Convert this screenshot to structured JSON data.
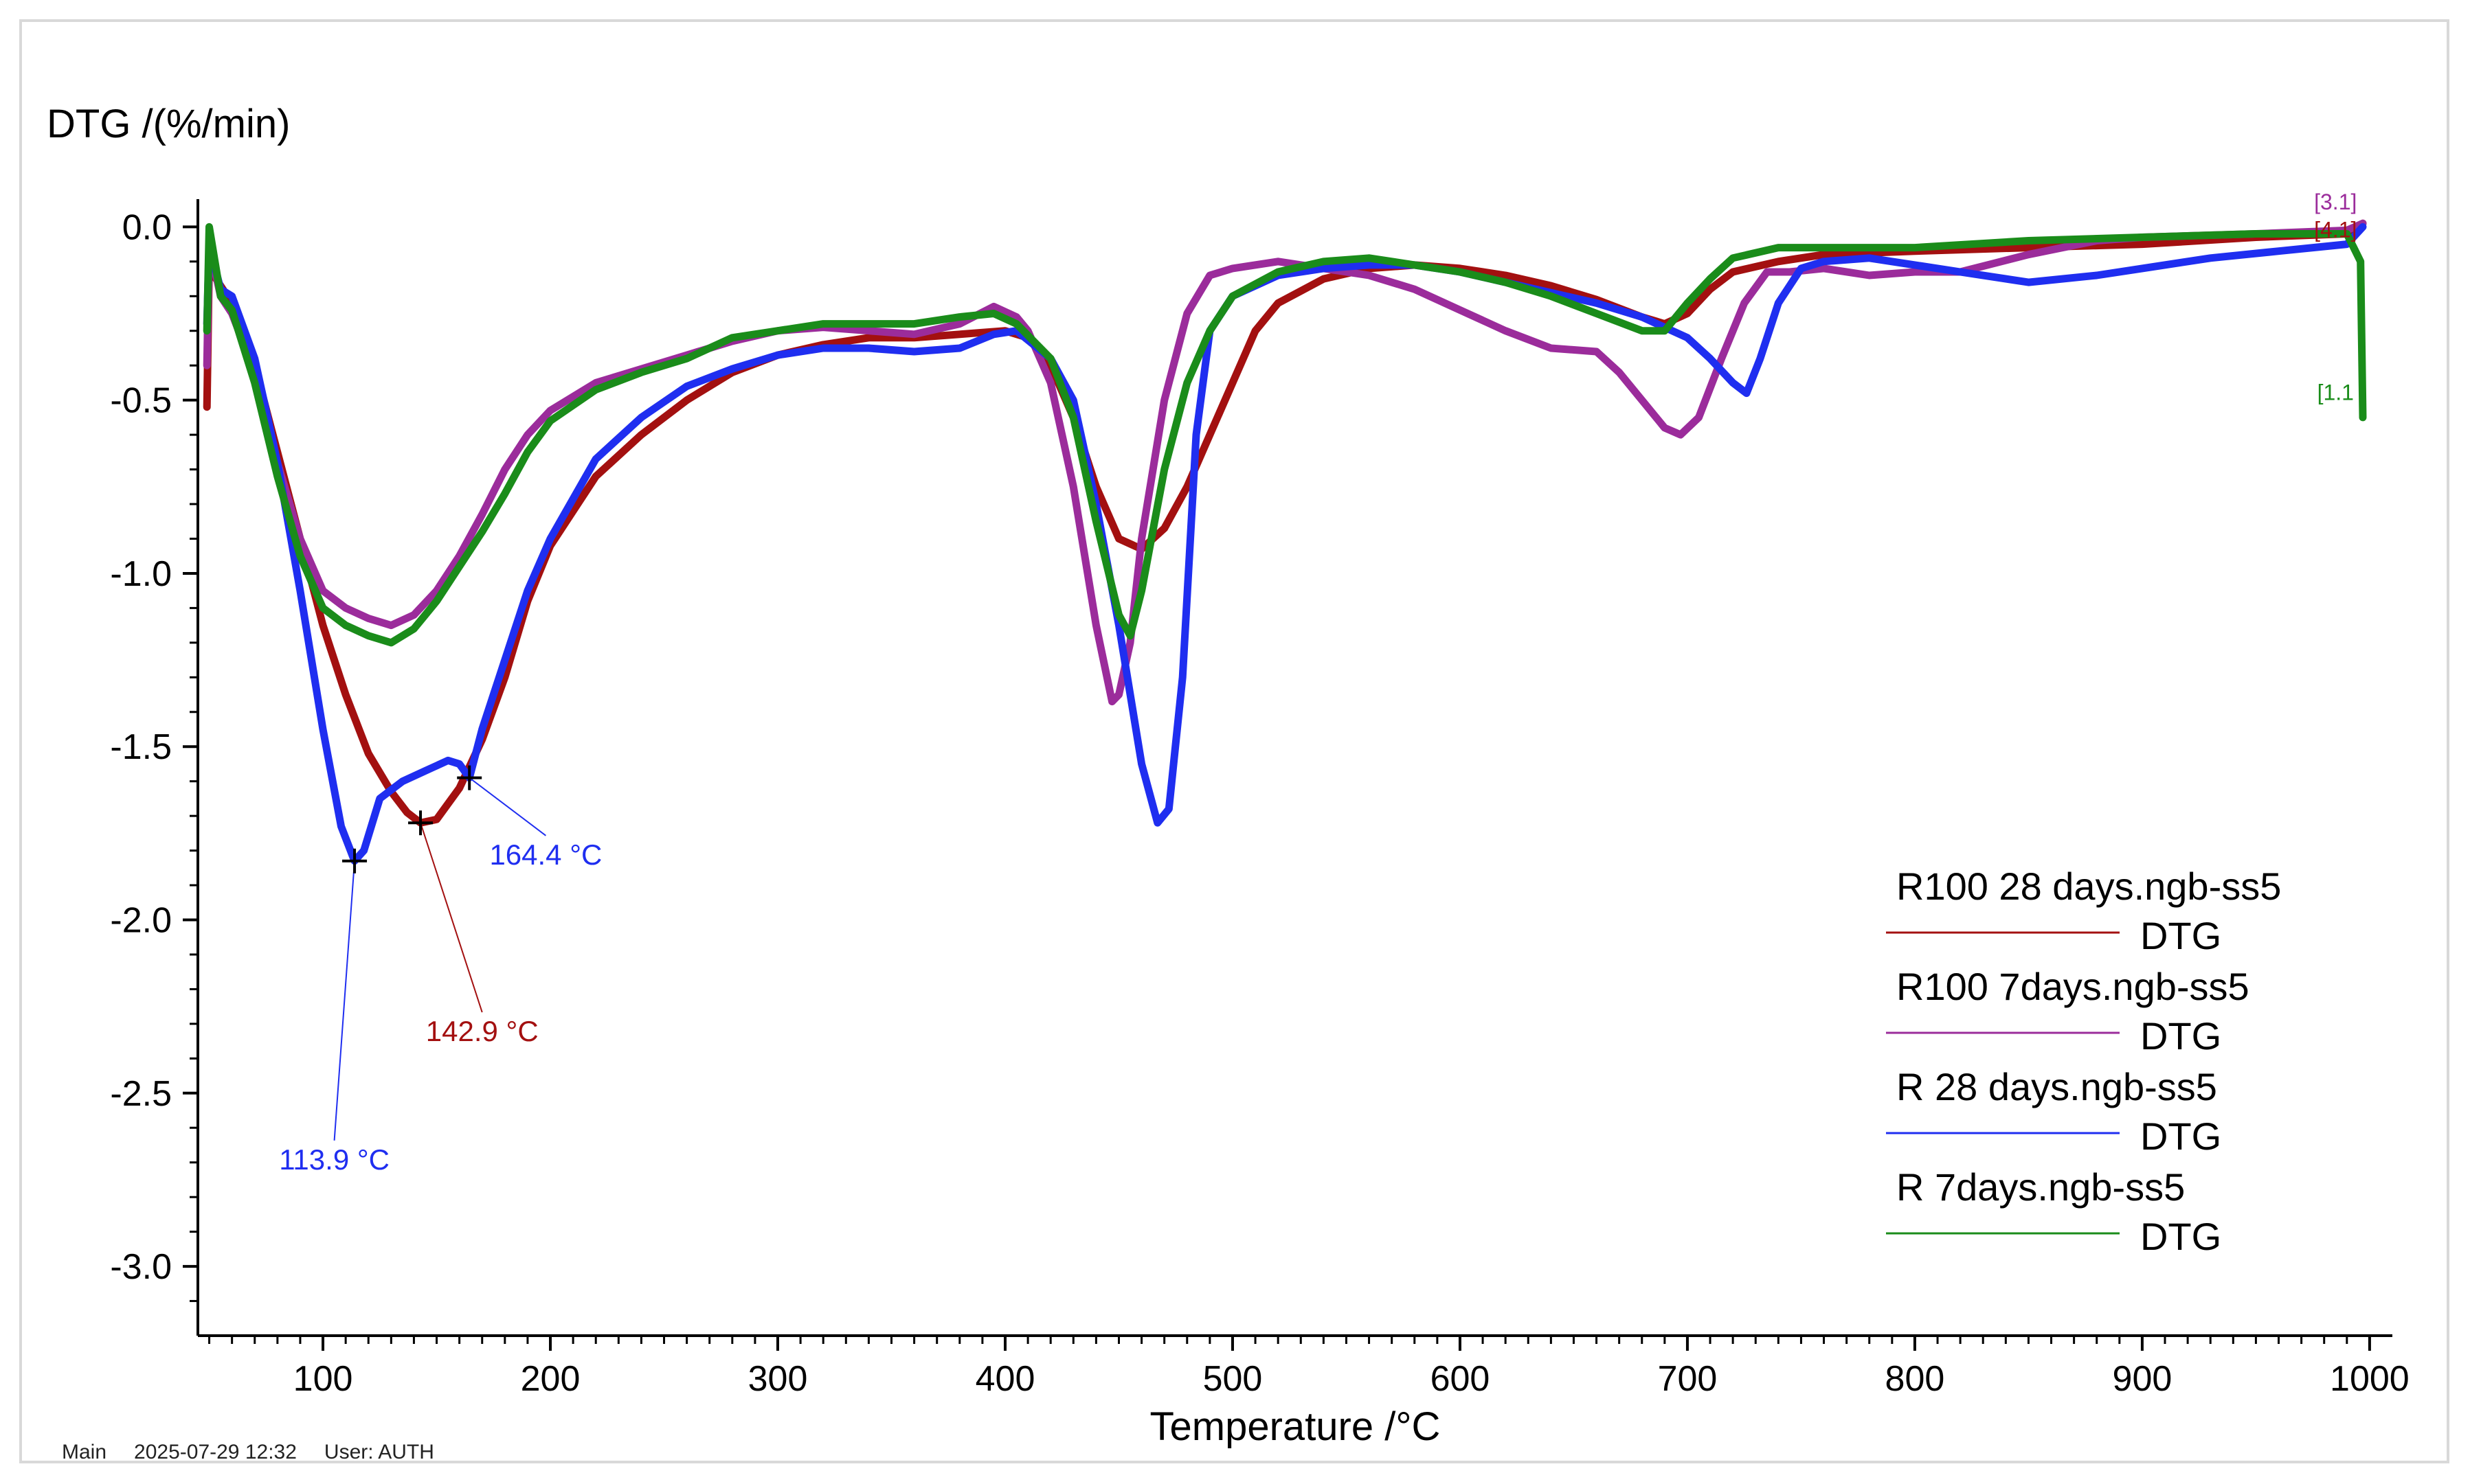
{
  "chart_data": {
    "type": "line",
    "ylabel": "DTG /(%/min)",
    "xlabel": "Temperature /°C",
    "xlim": [
      45,
      1010
    ],
    "ylim": [
      -3.2,
      0.08
    ],
    "xticks": [
      100,
      200,
      300,
      400,
      500,
      600,
      700,
      800,
      900,
      1000
    ],
    "yticks": [
      0.0,
      -0.5,
      -1.0,
      -1.5,
      -2.0,
      -2.5,
      -3.0
    ],
    "ytick_labels": [
      "0.0",
      "-0.5",
      "-1.0",
      "-1.5",
      "-2.0",
      "-2.5",
      "-3.0"
    ],
    "legend_position": "bottom-right",
    "series": [
      {
        "name": "R100 28 days.ngb-ss5",
        "sub": "DTG",
        "color": "#a31010",
        "points": [
          [
            49,
            -0.52
          ],
          [
            50,
            -0.1
          ],
          [
            53,
            -0.15
          ],
          [
            60,
            -0.22
          ],
          [
            70,
            -0.4
          ],
          [
            80,
            -0.65
          ],
          [
            90,
            -0.9
          ],
          [
            100,
            -1.15
          ],
          [
            110,
            -1.35
          ],
          [
            120,
            -1.52
          ],
          [
            130,
            -1.63
          ],
          [
            137,
            -1.69
          ],
          [
            142.9,
            -1.72
          ],
          [
            150,
            -1.71
          ],
          [
            160,
            -1.62
          ],
          [
            170,
            -1.48
          ],
          [
            180,
            -1.3
          ],
          [
            190,
            -1.08
          ],
          [
            200,
            -0.92
          ],
          [
            220,
            -0.72
          ],
          [
            240,
            -0.6
          ],
          [
            260,
            -0.5
          ],
          [
            280,
            -0.42
          ],
          [
            300,
            -0.37
          ],
          [
            320,
            -0.34
          ],
          [
            340,
            -0.32
          ],
          [
            360,
            -0.32
          ],
          [
            380,
            -0.31
          ],
          [
            400,
            -0.3
          ],
          [
            410,
            -0.32
          ],
          [
            420,
            -0.4
          ],
          [
            430,
            -0.55
          ],
          [
            440,
            -0.75
          ],
          [
            450,
            -0.9
          ],
          [
            460,
            -0.93
          ],
          [
            470,
            -0.87
          ],
          [
            480,
            -0.75
          ],
          [
            490,
            -0.6
          ],
          [
            500,
            -0.45
          ],
          [
            510,
            -0.3
          ],
          [
            520,
            -0.22
          ],
          [
            540,
            -0.15
          ],
          [
            560,
            -0.12
          ],
          [
            580,
            -0.11
          ],
          [
            600,
            -0.12
          ],
          [
            620,
            -0.14
          ],
          [
            640,
            -0.17
          ],
          [
            660,
            -0.21
          ],
          [
            680,
            -0.26
          ],
          [
            690,
            -0.28
          ],
          [
            700,
            -0.25
          ],
          [
            710,
            -0.18
          ],
          [
            720,
            -0.13
          ],
          [
            740,
            -0.1
          ],
          [
            760,
            -0.08
          ],
          [
            800,
            -0.07
          ],
          [
            850,
            -0.06
          ],
          [
            900,
            -0.05
          ],
          [
            950,
            -0.03
          ],
          [
            990,
            -0.02
          ],
          [
            997,
            0.01
          ]
        ]
      },
      {
        "name": "R100 7days.ngb-ss5",
        "sub": "DTG",
        "color": "#9b2c9b",
        "points": [
          [
            49,
            -0.4
          ],
          [
            50,
            -0.05
          ],
          [
            55,
            -0.2
          ],
          [
            60,
            -0.25
          ],
          [
            70,
            -0.42
          ],
          [
            80,
            -0.68
          ],
          [
            90,
            -0.9
          ],
          [
            100,
            -1.05
          ],
          [
            110,
            -1.1
          ],
          [
            120,
            -1.13
          ],
          [
            130,
            -1.15
          ],
          [
            140,
            -1.12
          ],
          [
            150,
            -1.05
          ],
          [
            160,
            -0.95
          ],
          [
            170,
            -0.83
          ],
          [
            180,
            -0.7
          ],
          [
            190,
            -0.6
          ],
          [
            200,
            -0.53
          ],
          [
            220,
            -0.45
          ],
          [
            240,
            -0.41
          ],
          [
            260,
            -0.37
          ],
          [
            280,
            -0.33
          ],
          [
            300,
            -0.3
          ],
          [
            320,
            -0.29
          ],
          [
            340,
            -0.3
          ],
          [
            360,
            -0.31
          ],
          [
            380,
            -0.28
          ],
          [
            395,
            -0.23
          ],
          [
            405,
            -0.26
          ],
          [
            410,
            -0.3
          ],
          [
            420,
            -0.45
          ],
          [
            430,
            -0.75
          ],
          [
            440,
            -1.15
          ],
          [
            447,
            -1.37
          ],
          [
            450,
            -1.35
          ],
          [
            455,
            -1.2
          ],
          [
            460,
            -0.9
          ],
          [
            470,
            -0.5
          ],
          [
            480,
            -0.25
          ],
          [
            490,
            -0.14
          ],
          [
            500,
            -0.12
          ],
          [
            520,
            -0.1
          ],
          [
            540,
            -0.12
          ],
          [
            560,
            -0.14
          ],
          [
            580,
            -0.18
          ],
          [
            600,
            -0.24
          ],
          [
            620,
            -0.3
          ],
          [
            640,
            -0.35
          ],
          [
            660,
            -0.36
          ],
          [
            670,
            -0.42
          ],
          [
            680,
            -0.5
          ],
          [
            690,
            -0.58
          ],
          [
            697,
            -0.6
          ],
          [
            705,
            -0.55
          ],
          [
            715,
            -0.38
          ],
          [
            725,
            -0.22
          ],
          [
            735,
            -0.13
          ],
          [
            745,
            -0.13
          ],
          [
            760,
            -0.12
          ],
          [
            780,
            -0.14
          ],
          [
            800,
            -0.13
          ],
          [
            820,
            -0.13
          ],
          [
            850,
            -0.08
          ],
          [
            880,
            -0.04
          ],
          [
            900,
            -0.03
          ],
          [
            950,
            -0.02
          ],
          [
            990,
            -0.01
          ],
          [
            997,
            0.01
          ]
        ]
      },
      {
        "name": "R 28 days.ngb-ss5",
        "sub": "DTG",
        "color": "#1f2ef0",
        "points": [
          [
            49,
            -0.28
          ],
          [
            50,
            -0.05
          ],
          [
            55,
            -0.18
          ],
          [
            60,
            -0.2
          ],
          [
            70,
            -0.38
          ],
          [
            80,
            -0.68
          ],
          [
            90,
            -1.05
          ],
          [
            100,
            -1.45
          ],
          [
            108,
            -1.73
          ],
          [
            113.9,
            -1.83
          ],
          [
            118,
            -1.8
          ],
          [
            125,
            -1.65
          ],
          [
            135,
            -1.6
          ],
          [
            145,
            -1.57
          ],
          [
            155,
            -1.54
          ],
          [
            160,
            -1.55
          ],
          [
            164.4,
            -1.59
          ],
          [
            170,
            -1.45
          ],
          [
            180,
            -1.25
          ],
          [
            190,
            -1.05
          ],
          [
            200,
            -0.9
          ],
          [
            220,
            -0.67
          ],
          [
            240,
            -0.55
          ],
          [
            260,
            -0.46
          ],
          [
            280,
            -0.41
          ],
          [
            300,
            -0.37
          ],
          [
            320,
            -0.35
          ],
          [
            340,
            -0.35
          ],
          [
            360,
            -0.36
          ],
          [
            380,
            -0.35
          ],
          [
            395,
            -0.31
          ],
          [
            405,
            -0.3
          ],
          [
            420,
            -0.38
          ],
          [
            430,
            -0.5
          ],
          [
            440,
            -0.8
          ],
          [
            450,
            -1.15
          ],
          [
            460,
            -1.55
          ],
          [
            467,
            -1.72
          ],
          [
            472,
            -1.68
          ],
          [
            478,
            -1.3
          ],
          [
            484,
            -0.6
          ],
          [
            490,
            -0.3
          ],
          [
            500,
            -0.2
          ],
          [
            520,
            -0.14
          ],
          [
            540,
            -0.12
          ],
          [
            560,
            -0.11
          ],
          [
            580,
            -0.11
          ],
          [
            600,
            -0.13
          ],
          [
            620,
            -0.16
          ],
          [
            640,
            -0.19
          ],
          [
            660,
            -0.22
          ],
          [
            680,
            -0.26
          ],
          [
            700,
            -0.32
          ],
          [
            710,
            -0.38
          ],
          [
            720,
            -0.45
          ],
          [
            726,
            -0.48
          ],
          [
            732,
            -0.38
          ],
          [
            740,
            -0.22
          ],
          [
            750,
            -0.12
          ],
          [
            760,
            -0.1
          ],
          [
            780,
            -0.09
          ],
          [
            800,
            -0.11
          ],
          [
            820,
            -0.13
          ],
          [
            850,
            -0.16
          ],
          [
            880,
            -0.14
          ],
          [
            900,
            -0.12
          ],
          [
            930,
            -0.09
          ],
          [
            960,
            -0.07
          ],
          [
            990,
            -0.05
          ],
          [
            997,
            0.0
          ]
        ]
      },
      {
        "name": "R 7days.ngb-ss5",
        "sub": "DTG",
        "color": "#1a8c1a",
        "points": [
          [
            49,
            -0.3
          ],
          [
            50,
            0.0
          ],
          [
            55,
            -0.2
          ],
          [
            60,
            -0.24
          ],
          [
            70,
            -0.45
          ],
          [
            80,
            -0.72
          ],
          [
            90,
            -0.95
          ],
          [
            100,
            -1.1
          ],
          [
            110,
            -1.15
          ],
          [
            120,
            -1.18
          ],
          [
            130,
            -1.2
          ],
          [
            140,
            -1.16
          ],
          [
            150,
            -1.08
          ],
          [
            160,
            -0.98
          ],
          [
            170,
            -0.88
          ],
          [
            180,
            -0.77
          ],
          [
            190,
            -0.65
          ],
          [
            200,
            -0.56
          ],
          [
            220,
            -0.47
          ],
          [
            240,
            -0.42
          ],
          [
            260,
            -0.38
          ],
          [
            280,
            -0.32
          ],
          [
            300,
            -0.3
          ],
          [
            320,
            -0.28
          ],
          [
            340,
            -0.28
          ],
          [
            360,
            -0.28
          ],
          [
            380,
            -0.26
          ],
          [
            395,
            -0.25
          ],
          [
            405,
            -0.28
          ],
          [
            420,
            -0.38
          ],
          [
            430,
            -0.55
          ],
          [
            440,
            -0.85
          ],
          [
            450,
            -1.12
          ],
          [
            455,
            -1.18
          ],
          [
            460,
            -1.05
          ],
          [
            470,
            -0.7
          ],
          [
            480,
            -0.45
          ],
          [
            490,
            -0.3
          ],
          [
            500,
            -0.2
          ],
          [
            520,
            -0.13
          ],
          [
            540,
            -0.1
          ],
          [
            560,
            -0.09
          ],
          [
            580,
            -0.11
          ],
          [
            600,
            -0.13
          ],
          [
            620,
            -0.16
          ],
          [
            640,
            -0.2
          ],
          [
            660,
            -0.25
          ],
          [
            680,
            -0.3
          ],
          [
            690,
            -0.3
          ],
          [
            700,
            -0.22
          ],
          [
            710,
            -0.15
          ],
          [
            720,
            -0.09
          ],
          [
            740,
            -0.06
          ],
          [
            760,
            -0.06
          ],
          [
            800,
            -0.06
          ],
          [
            850,
            -0.04
          ],
          [
            900,
            -0.03
          ],
          [
            950,
            -0.02
          ],
          [
            990,
            -0.02
          ],
          [
            996,
            -0.1
          ],
          [
            997,
            -0.55
          ]
        ]
      }
    ],
    "annotations": [
      {
        "label": "164.4 °C",
        "x": 164.4,
        "y": -1.59,
        "tx": 198,
        "ty": -1.84,
        "color": "#1f2ef0"
      },
      {
        "label": "142.9 °C",
        "x": 142.9,
        "y": -1.72,
        "tx": 170,
        "ty": -2.35,
        "color": "#a31010"
      },
      {
        "label": "113.9 °C",
        "x": 113.9,
        "y": -1.83,
        "tx": 105,
        "ty": -2.72,
        "color": "#1f2ef0"
      }
    ],
    "end_labels": [
      {
        "label": "[3.1]",
        "x": 985,
        "y": 0.05,
        "color": "#9b2c9b"
      },
      {
        "label": "[4.1]",
        "x": 985,
        "y": -0.03,
        "color": "#a31010"
      },
      {
        "label": "[1.1",
        "x": 985,
        "y": -0.5,
        "color": "#1a8c1a"
      }
    ]
  },
  "footer": {
    "module": "Main",
    "datetime": "2025-07-29 12:32",
    "user": "User: AUTH"
  }
}
